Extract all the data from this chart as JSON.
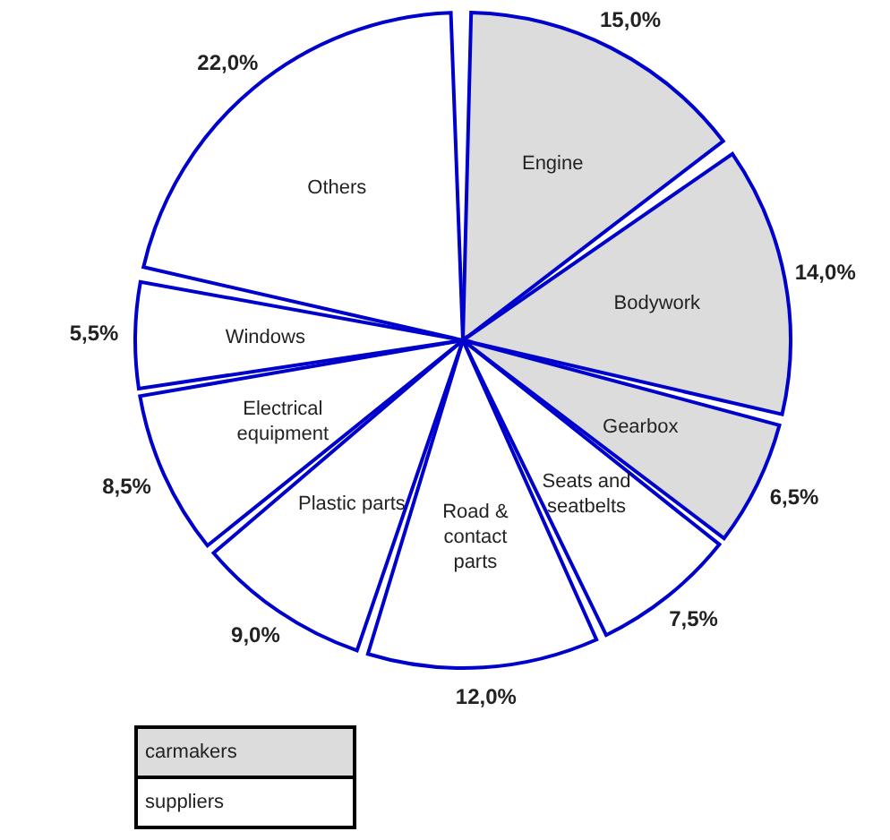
{
  "chart_data": {
    "type": "pie",
    "categories": [
      "Engine",
      "Bodywork",
      "Gearbox",
      "Seats and seatbelts",
      "Road & contact parts",
      "Plastic parts",
      "Electrical equipment",
      "Windows",
      "Others"
    ],
    "values": [
      15,
      14,
      6.5,
      7.5,
      12,
      9,
      8.5,
      5.5,
      22
    ],
    "value_labels": [
      "15,0%",
      "14,0%",
      "6,5%",
      "7,5%",
      "12,0%",
      "9,0%",
      "8,5%",
      "5,5%",
      "22,0%"
    ],
    "colors": [
      "#dcdcdc",
      "#dcdcdc",
      "#dcdcdc",
      "#ffffff",
      "#ffffff",
      "#ffffff",
      "#ffffff",
      "#ffffff",
      "#ffffff"
    ],
    "annotations": [
      "carmakers",
      "suppliers"
    ]
  }
}
